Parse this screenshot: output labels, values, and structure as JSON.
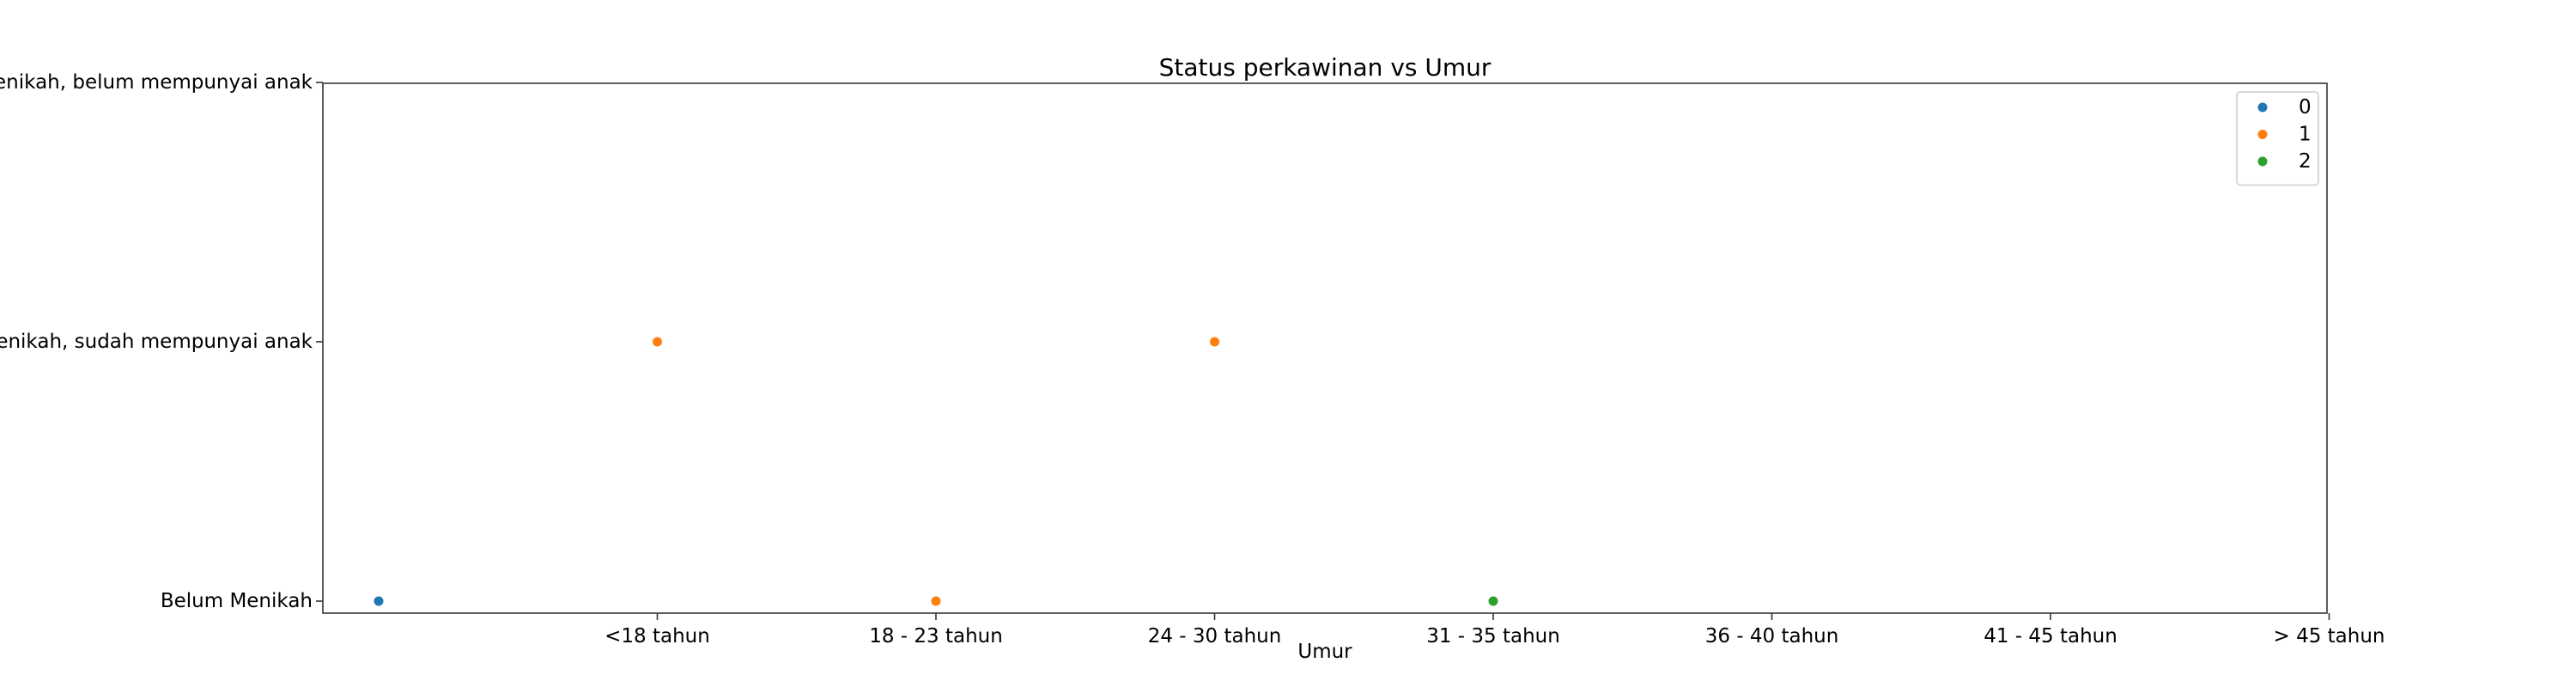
{
  "chart_data": {
    "type": "scatter",
    "title": "Status perkawinan vs Umur",
    "xlabel": "Umur",
    "ylabel": "",
    "x_categories": [
      "",
      "<18 tahun",
      "18 - 23 tahun",
      "24 - 30 tahun",
      "31 - 35 tahun",
      "36 - 40 tahun",
      "41 - 45 tahun",
      "> 45 tahun"
    ],
    "x_tick_labels": [
      "<18 tahun",
      "18 - 23 tahun",
      "24 - 30 tahun",
      "31 - 35 tahun",
      "36 - 40 tahun",
      "41 - 45 tahun",
      "> 45 tahun"
    ],
    "y_categories": [
      "Belum Menikah",
      "Menikah, sudah mempunyai anak",
      "Menikah, belum mempunyai anak"
    ],
    "grid": false,
    "legend_position": "top-right",
    "series": [
      {
        "name": "0",
        "color": "#1f77b4",
        "points": [
          {
            "x": "",
            "y": "Belum Menikah"
          }
        ]
      },
      {
        "name": "1",
        "color": "#ff7f0e",
        "points": [
          {
            "x": "<18 tahun",
            "y": "Menikah, sudah mempunyai anak"
          },
          {
            "x": "18 - 23 tahun",
            "y": "Belum Menikah"
          },
          {
            "x": "24 - 30 tahun",
            "y": "Menikah, sudah mempunyai anak"
          }
        ]
      },
      {
        "name": "2",
        "color": "#2ca02c",
        "points": [
          {
            "x": "31 - 35 tahun",
            "y": "Belum Menikah"
          }
        ]
      }
    ]
  }
}
